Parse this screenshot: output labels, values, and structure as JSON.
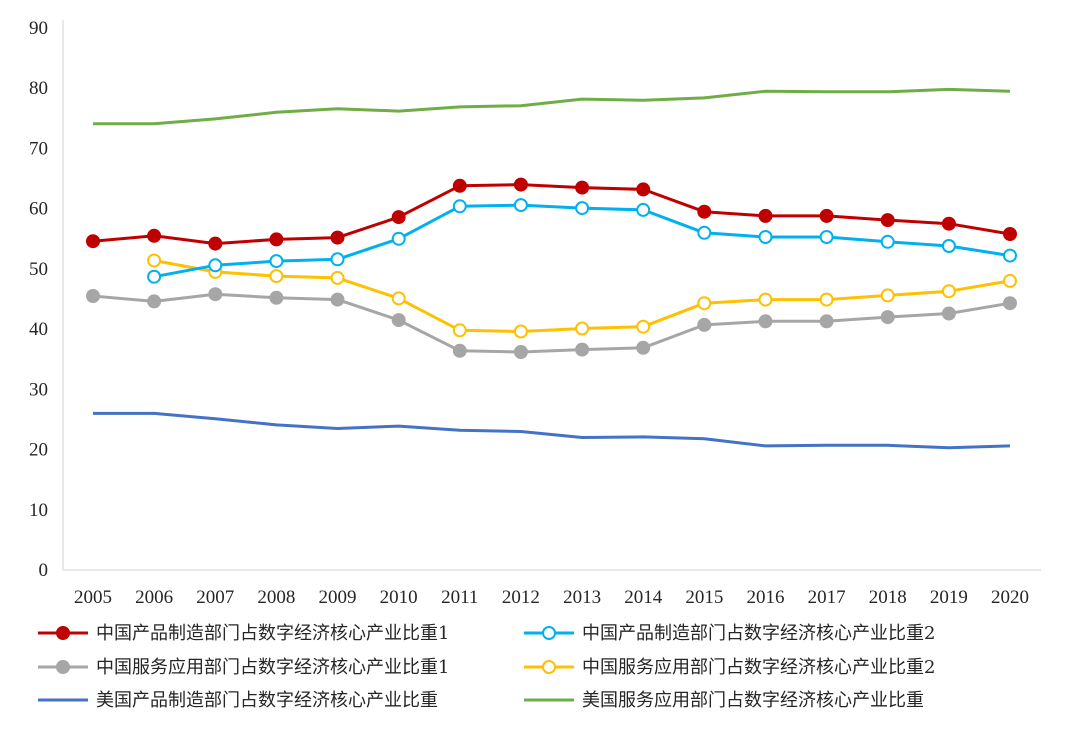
{
  "chart_data": {
    "type": "line",
    "title": "",
    "xlabel": "",
    "ylabel": "",
    "x": [
      2005,
      2006,
      2007,
      2008,
      2009,
      2010,
      2011,
      2012,
      2013,
      2014,
      2015,
      2016,
      2017,
      2018,
      2019,
      2020
    ],
    "x_tick_labels": [
      "2005",
      "2006",
      "2007",
      "2008",
      "2009",
      "2010",
      "2011",
      "2012",
      "2013",
      "2014",
      "2015",
      "2016",
      "2017",
      "2018",
      "2019",
      "2020"
    ],
    "ylim": [
      0,
      90
    ],
    "y_ticks": [
      0,
      10,
      20,
      30,
      40,
      50,
      60,
      70,
      80,
      90
    ],
    "y_tick_labels": [
      "0",
      "10",
      "20",
      "30",
      "40",
      "50",
      "60",
      "70",
      "80",
      "90"
    ],
    "grid": false,
    "legend_position": "bottom",
    "series": [
      {
        "name": "中国产品制造部门占数字经济核心产业比重1",
        "color": "#C00000",
        "marker": "filled-circle",
        "values": [
          54.6,
          55.5,
          54.2,
          54.9,
          55.2,
          58.6,
          63.8,
          64.0,
          63.5,
          63.2,
          59.5,
          58.8,
          58.8,
          58.1,
          57.5,
          55.8
        ]
      },
      {
        "name": "中国产品制造部门占数字经济核心产业比重2",
        "color": "#00B0F0",
        "marker": "hollow-circle",
        "values": [
          null,
          48.7,
          50.6,
          51.3,
          51.6,
          55.0,
          60.4,
          60.6,
          60.1,
          59.8,
          56.0,
          55.3,
          55.3,
          54.5,
          53.8,
          52.2
        ]
      },
      {
        "name": "中国服务应用部门占数字经济核心产业比重1",
        "color": "#A6A6A6",
        "marker": "filled-circle",
        "values": [
          45.5,
          44.6,
          45.8,
          45.2,
          44.9,
          41.5,
          36.4,
          36.2,
          36.6,
          36.9,
          40.7,
          41.3,
          41.3,
          42.0,
          42.6,
          44.3
        ]
      },
      {
        "name": "中国服务应用部门占数字经济核心产业比重2",
        "color": "#FFC000",
        "marker": "hollow-circle",
        "values": [
          null,
          51.4,
          49.5,
          48.8,
          48.5,
          45.1,
          39.8,
          39.6,
          40.1,
          40.4,
          44.3,
          44.9,
          44.9,
          45.6,
          46.3,
          48.0
        ]
      },
      {
        "name": "美国产品制造部门占数字经济核心产业比重",
        "color": "#4472C4",
        "marker": "none",
        "values": [
          26.0,
          26.0,
          25.1,
          24.1,
          23.5,
          23.9,
          23.2,
          23.0,
          22.0,
          22.1,
          21.8,
          20.6,
          20.7,
          20.7,
          20.3,
          20.6
        ]
      },
      {
        "name": "美国服务应用部门占数字经济核心产业比重",
        "color": "#70AD47",
        "marker": "none",
        "values": [
          74.1,
          74.1,
          74.9,
          76.0,
          76.6,
          76.2,
          76.9,
          77.1,
          78.2,
          78.0,
          78.4,
          79.5,
          79.4,
          79.4,
          79.8,
          79.5
        ]
      }
    ]
  }
}
